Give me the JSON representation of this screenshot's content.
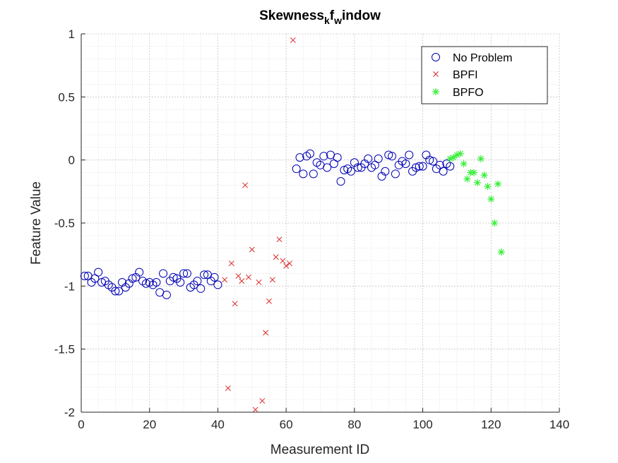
{
  "chart_data": {
    "type": "scatter",
    "title_main": "Skewness",
    "title_sub1": "k",
    "title_mid": "f",
    "title_sub2": "w",
    "title_end": "indow",
    "xlabel": "Measurement ID",
    "ylabel": "Feature Value",
    "xlim": [
      0,
      140
    ],
    "ylim": [
      -2,
      1
    ],
    "xticks": [
      0,
      20,
      40,
      60,
      80,
      100,
      120,
      140
    ],
    "yticks": [
      -2,
      -1.5,
      -1,
      -0.5,
      0,
      0.5,
      1
    ],
    "xtick_labels": [
      "0",
      "20",
      "40",
      "60",
      "80",
      "100",
      "120",
      "140"
    ],
    "ytick_labels": [
      "-2",
      "-1.5",
      "-1",
      "-0.5",
      "0",
      "0.5",
      "1"
    ],
    "grid": true,
    "minor_grid": true,
    "legend_position": "top-right",
    "series": [
      {
        "name": "No Problem",
        "marker": "circle",
        "color": "#0000b3",
        "points": [
          [
            1,
            -0.92
          ],
          [
            2,
            -0.92
          ],
          [
            3,
            -0.97
          ],
          [
            4,
            -0.94
          ],
          [
            5,
            -0.89
          ],
          [
            6,
            -0.97
          ],
          [
            7,
            -0.96
          ],
          [
            8,
            -0.99
          ],
          [
            9,
            -1.01
          ],
          [
            10,
            -1.04
          ],
          [
            11,
            -1.04
          ],
          [
            12,
            -0.97
          ],
          [
            13,
            -1.01
          ],
          [
            14,
            -0.98
          ],
          [
            15,
            -0.94
          ],
          [
            16,
            -0.93
          ],
          [
            17,
            -0.89
          ],
          [
            18,
            -0.96
          ],
          [
            19,
            -0.98
          ],
          [
            20,
            -0.97
          ],
          [
            21,
            -0.99
          ],
          [
            22,
            -0.97
          ],
          [
            23,
            -1.05
          ],
          [
            24,
            -0.9
          ],
          [
            25,
            -1.07
          ],
          [
            26,
            -0.96
          ],
          [
            27,
            -0.93
          ],
          [
            28,
            -0.94
          ],
          [
            29,
            -0.97
          ],
          [
            30,
            -0.9
          ],
          [
            31,
            -0.9
          ],
          [
            32,
            -1.01
          ],
          [
            33,
            -0.99
          ],
          [
            34,
            -0.96
          ],
          [
            35,
            -1.02
          ],
          [
            36,
            -0.91
          ],
          [
            37,
            -0.91
          ],
          [
            38,
            -0.96
          ],
          [
            39,
            -0.93
          ],
          [
            40,
            -0.99
          ],
          [
            63,
            -0.07
          ],
          [
            64,
            0.02
          ],
          [
            65,
            -0.11
          ],
          [
            66,
            0.03
          ],
          [
            67,
            0.05
          ],
          [
            68,
            -0.11
          ],
          [
            69,
            -0.02
          ],
          [
            70,
            -0.04
          ],
          [
            71,
            0.03
          ],
          [
            72,
            -0.06
          ],
          [
            73,
            0.04
          ],
          [
            74,
            -0.03
          ],
          [
            75,
            0.02
          ],
          [
            76,
            -0.17
          ],
          [
            77,
            -0.08
          ],
          [
            78,
            -0.07
          ],
          [
            79,
            -0.09
          ],
          [
            80,
            -0.02
          ],
          [
            81,
            -0.06
          ],
          [
            82,
            -0.06
          ],
          [
            83,
            -0.03
          ],
          [
            84,
            0.01
          ],
          [
            85,
            -0.06
          ],
          [
            86,
            -0.04
          ],
          [
            87,
            0.01
          ],
          [
            88,
            -0.13
          ],
          [
            89,
            -0.09
          ],
          [
            90,
            0.04
          ],
          [
            91,
            0.03
          ],
          [
            92,
            -0.11
          ],
          [
            93,
            -0.04
          ],
          [
            94,
            -0.01
          ],
          [
            95,
            -0.03
          ],
          [
            96,
            0.04
          ],
          [
            97,
            -0.09
          ],
          [
            98,
            -0.06
          ],
          [
            99,
            -0.05
          ],
          [
            100,
            -0.05
          ],
          [
            101,
            0.04
          ],
          [
            102,
            0.0
          ],
          [
            103,
            -0.01
          ],
          [
            104,
            -0.07
          ],
          [
            105,
            -0.04
          ],
          [
            106,
            -0.09
          ],
          [
            107,
            -0.03
          ],
          [
            108,
            -0.05
          ]
        ]
      },
      {
        "name": "BPFI",
        "marker": "x",
        "color": "#d92b2b",
        "points": [
          [
            42,
            -0.95
          ],
          [
            43,
            -1.81
          ],
          [
            44,
            -0.82
          ],
          [
            45,
            -1.14
          ],
          [
            46,
            -0.92
          ],
          [
            47,
            -0.96
          ],
          [
            48,
            -0.2
          ],
          [
            49,
            -0.93
          ],
          [
            50,
            -0.71
          ],
          [
            51,
            -1.98
          ],
          [
            52,
            -0.97
          ],
          [
            53,
            -1.91
          ],
          [
            54,
            -1.37
          ],
          [
            55,
            -1.12
          ],
          [
            56,
            -0.95
          ],
          [
            57,
            -0.77
          ],
          [
            58,
            -0.63
          ],
          [
            59,
            -0.8
          ],
          [
            60,
            -0.84
          ],
          [
            61,
            -0.82
          ],
          [
            62,
            0.95
          ]
        ]
      },
      {
        "name": "BPFO",
        "marker": "star",
        "color": "#33ee33",
        "points": [
          [
            108,
            0.01
          ],
          [
            109,
            0.02
          ],
          [
            110,
            0.04
          ],
          [
            111,
            0.05
          ],
          [
            112,
            -0.03
          ],
          [
            113,
            -0.15
          ],
          [
            114,
            -0.1
          ],
          [
            115,
            -0.1
          ],
          [
            116,
            -0.18
          ],
          [
            117,
            0.01
          ],
          [
            118,
            -0.12
          ],
          [
            119,
            -0.21
          ],
          [
            120,
            -0.31
          ],
          [
            121,
            -0.5
          ],
          [
            122,
            -0.19
          ],
          [
            123,
            -0.73
          ]
        ]
      }
    ]
  }
}
